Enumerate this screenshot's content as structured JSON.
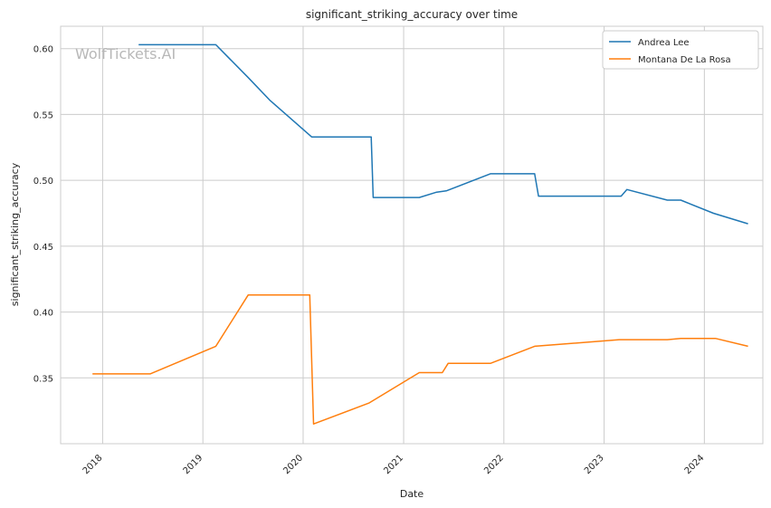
{
  "watermark": "WolfTickets.AI",
  "chart_data": {
    "type": "line",
    "title": "significant_striking_accuracy over time",
    "xlabel": "Date",
    "ylabel": "significant_striking_accuracy",
    "xlim": [
      "2017-08-01",
      "2024-08-01"
    ],
    "ylim": [
      0.3,
      0.617
    ],
    "x_ticks": [
      "2018",
      "2019",
      "2020",
      "2021",
      "2022",
      "2023",
      "2024"
    ],
    "y_ticks": [
      0.35,
      0.4,
      0.45,
      0.5,
      0.55,
      0.6
    ],
    "y_tick_labels": [
      "0.35",
      "0.40",
      "0.45",
      "0.50",
      "0.55",
      "0.60"
    ],
    "grid": true,
    "legend_position": "top-right",
    "series": [
      {
        "name": "Andrea Lee",
        "color": "#1f77b4",
        "points": [
          [
            "2018-05-12",
            0.603
          ],
          [
            "2019-02-17",
            0.603
          ],
          [
            "2019-06-15",
            0.578
          ],
          [
            "2019-09-01",
            0.561
          ],
          [
            "2020-02-01",
            0.533
          ],
          [
            "2020-09-05",
            0.533
          ],
          [
            "2020-09-12",
            0.487
          ],
          [
            "2021-02-27",
            0.487
          ],
          [
            "2021-05-01",
            0.491
          ],
          [
            "2021-06-05",
            0.492
          ],
          [
            "2021-11-13",
            0.505
          ],
          [
            "2022-04-23",
            0.505
          ],
          [
            "2022-05-07",
            0.488
          ],
          [
            "2023-03-04",
            0.488
          ],
          [
            "2023-03-25",
            0.493
          ],
          [
            "2023-08-19",
            0.485
          ],
          [
            "2023-10-07",
            0.485
          ],
          [
            "2024-02-03",
            0.475
          ],
          [
            "2024-06-08",
            0.467
          ]
        ]
      },
      {
        "name": "Montana De La Rosa",
        "color": "#ff7f0e",
        "points": [
          [
            "2017-11-25",
            0.353
          ],
          [
            "2018-06-23",
            0.353
          ],
          [
            "2019-02-17",
            0.374
          ],
          [
            "2019-06-15",
            0.413
          ],
          [
            "2020-01-25",
            0.413
          ],
          [
            "2020-02-08",
            0.315
          ],
          [
            "2020-08-29",
            0.331
          ],
          [
            "2021-02-27",
            0.354
          ],
          [
            "2021-05-22",
            0.354
          ],
          [
            "2021-06-12",
            0.361
          ],
          [
            "2021-11-13",
            0.361
          ],
          [
            "2022-04-23",
            0.374
          ],
          [
            "2023-02-25",
            0.379
          ],
          [
            "2023-08-19",
            0.379
          ],
          [
            "2023-10-07",
            0.38
          ],
          [
            "2024-02-10",
            0.38
          ],
          [
            "2024-06-08",
            0.374
          ]
        ]
      }
    ]
  }
}
